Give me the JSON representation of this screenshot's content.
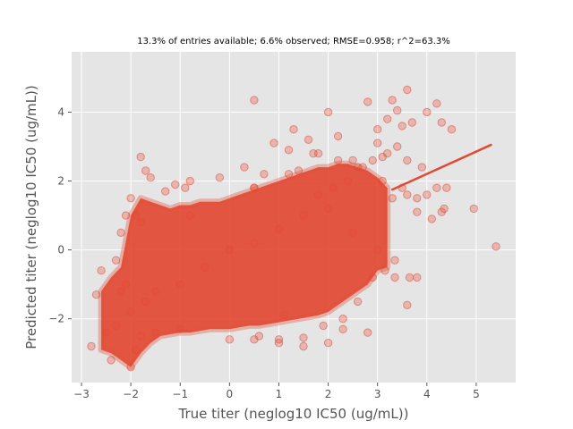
{
  "chart_data": {
    "type": "scatter",
    "title": "13.3% of entries available; 6.6% observed; RMSE=0.958; r^2=63.3%",
    "xlabel": "True titer (neglog10 IC50 (ug/mL))",
    "ylabel": "Predicted titer (neglog10 IC50 (ug/mL))",
    "xlim": [
      -3.2,
      5.8
    ],
    "ylim": [
      -3.85,
      5.75
    ],
    "x_ticks": [
      -3,
      -2,
      -1,
      0,
      1,
      2,
      3,
      4,
      5
    ],
    "y_ticks": [
      -2,
      0,
      2,
      4
    ],
    "grid": true,
    "point_color": "#E24A33",
    "background_color": "#E5E5E5",
    "series": [
      {
        "type": "scatter",
        "x": [
          -2.8,
          -2.7,
          -2.6,
          -2.5,
          -2.4,
          -2.3,
          -2.2,
          -2.1,
          -2.0,
          -1.9,
          -1.8,
          -1.7,
          -2.2,
          -2.1,
          -2.0,
          -1.9,
          -1.8,
          -2.3,
          -2.0,
          -1.5,
          -1.0,
          -0.5,
          0.0,
          0.5,
          1.0,
          1.5,
          2.0,
          2.5,
          3.0,
          0.5,
          1.0,
          1.5,
          2.0,
          2.3,
          2.6,
          2.9,
          -1.5,
          -1.0,
          0.0,
          -0.8,
          0.5,
          1.2,
          1.8,
          2.2,
          2.7,
          3.1,
          3.3,
          3.5,
          3.8,
          4.0,
          3.2,
          3.4,
          3.6,
          3.9,
          4.2,
          4.4,
          3.0,
          3.2,
          3.5,
          3.7,
          4.0,
          4.3,
          4.5,
          3.6,
          3.8,
          4.1,
          4.3,
          4.35,
          4.95,
          5.4,
          3.15,
          3.35,
          3.6,
          3.65,
          3.8,
          3.35,
          0.5,
          1.3,
          2.0,
          2.8,
          3.3,
          3.4,
          3.6,
          4.2,
          1.2,
          1.7,
          0.9,
          1.4,
          1.6,
          2.2,
          3.0,
          2.5,
          3.1,
          1.8,
          2.1,
          2.4,
          2.6,
          2.9,
          -1.8,
          -1.6,
          -1.7,
          -1.1,
          -0.8,
          -0.2,
          0.3,
          0.5,
          0.7,
          -1.3,
          -0.9,
          1.1,
          1.9,
          2.3,
          2.8,
          0.6,
          1.0,
          1.5
        ],
        "y": [
          -2.8,
          -1.3,
          -0.6,
          -2.4,
          -3.2,
          -2.2,
          -1.2,
          -1.0,
          -3.4,
          -2.9,
          -2.5,
          -1.5,
          0.5,
          1.0,
          1.5,
          1.0,
          0.8,
          -0.3,
          -1.8,
          -1.2,
          -1.0,
          -0.5,
          0.0,
          0.2,
          0.6,
          1.0,
          1.2,
          0.5,
          0.0,
          -2.6,
          -2.7,
          -2.8,
          -2.7,
          -2.0,
          -1.5,
          -0.8,
          -2.4,
          -2.3,
          -2.6,
          1.0,
          1.8,
          2.2,
          2.8,
          2.6,
          2.4,
          2.0,
          1.5,
          1.8,
          1.5,
          1.6,
          2.8,
          3.0,
          2.6,
          2.4,
          1.8,
          1.8,
          3.5,
          3.8,
          3.6,
          3.7,
          4.0,
          3.7,
          3.5,
          1.6,
          1.1,
          0.9,
          1.1,
          1.2,
          1.2,
          0.1,
          -0.6,
          -0.8,
          -1.6,
          -0.8,
          -0.8,
          -0.3,
          4.35,
          3.5,
          4.0,
          4.3,
          4.35,
          4.05,
          4.65,
          4.25,
          2.9,
          2.8,
          3.1,
          2.3,
          3.2,
          3.3,
          3.1,
          2.6,
          2.7,
          1.6,
          1.8,
          2.0,
          2.4,
          2.6,
          2.7,
          2.1,
          2.3,
          1.9,
          2.0,
          2.1,
          2.4,
          1.8,
          2.2,
          1.7,
          1.8,
          -1.9,
          -2.2,
          -2.3,
          -2.4,
          -2.5,
          -2.6,
          -2.55
        ],
        "density_profile": {
          "x": [
            -2.6,
            -2.4,
            -2.2,
            -2.0,
            -1.8,
            -1.6,
            -1.4,
            -1.2,
            -1.0,
            -0.8,
            -0.6,
            -0.4,
            -0.2,
            0.0,
            0.2,
            0.4,
            0.6,
            0.8,
            1.0,
            1.2,
            1.4,
            1.6,
            1.8,
            2.0,
            2.2,
            2.4,
            2.6,
            2.8,
            3.0,
            3.2
          ],
          "y_low": [
            -2.9,
            -3.0,
            -3.2,
            -3.4,
            -3.0,
            -2.7,
            -2.5,
            -2.45,
            -2.4,
            -2.4,
            -2.35,
            -2.3,
            -2.3,
            -2.3,
            -2.25,
            -2.2,
            -2.2,
            -2.15,
            -2.1,
            -2.05,
            -2.0,
            -1.95,
            -1.9,
            -1.8,
            -1.6,
            -1.4,
            -1.2,
            -1.0,
            -0.6,
            -0.5
          ],
          "y_high": [
            -1.2,
            -0.8,
            -0.5,
            1.0,
            1.5,
            1.4,
            1.3,
            1.2,
            1.3,
            1.3,
            1.4,
            1.4,
            1.4,
            1.5,
            1.6,
            1.7,
            1.8,
            1.9,
            2.0,
            2.1,
            2.2,
            2.3,
            2.4,
            2.4,
            2.5,
            2.5,
            2.4,
            2.3,
            2.1,
            1.8
          ]
        }
      }
    ],
    "fit_line": {
      "x": [
        3.3,
        5.3
      ],
      "y": [
        1.75,
        3.05
      ],
      "color": "#E24A33"
    }
  }
}
